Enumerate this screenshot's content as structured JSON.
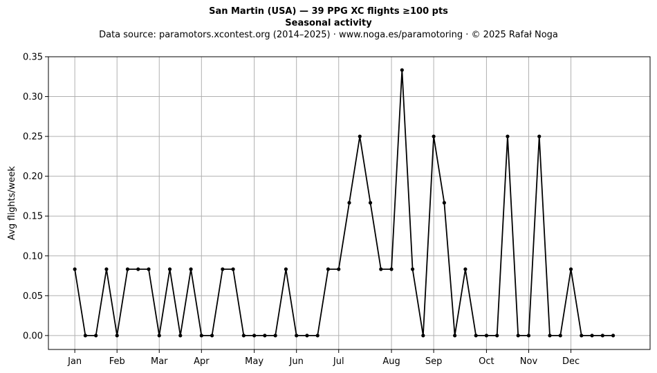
{
  "chart_data": {
    "type": "line",
    "title": "San Martin (USA)  —  39 PPG XC flights ≥100 pts",
    "subtitle": "Seasonal activity",
    "source_note": "Data source: paramotors.xcontest.org (2014–2025)  ·  www.noga.es/paramotoring  ·  © 2025 Rafał Noga",
    "xlabel": "",
    "ylabel": "Avg flights/week",
    "ylim": [
      -0.0175,
      0.35
    ],
    "xlim": [
      -2.5,
      54.5
    ],
    "grid": true,
    "x_ticks": [
      {
        "label": "Jan",
        "x": 0
      },
      {
        "label": "Feb",
        "x": 4
      },
      {
        "label": "Mar",
        "x": 8
      },
      {
        "label": "Apr",
        "x": 12
      },
      {
        "label": "May",
        "x": 17
      },
      {
        "label": "Jun",
        "x": 21
      },
      {
        "label": "Jul",
        "x": 25
      },
      {
        "label": "Aug",
        "x": 30
      },
      {
        "label": "Sep",
        "x": 34
      },
      {
        "label": "Oct",
        "x": 39
      },
      {
        "label": "Nov",
        "x": 43
      },
      {
        "label": "Dec",
        "x": 47
      }
    ],
    "y_ticks": [
      "0.00",
      "0.05",
      "0.10",
      "0.15",
      "0.20",
      "0.25",
      "0.30",
      "0.35"
    ],
    "series": [
      {
        "color": "#000000",
        "x": [
          0,
          1,
          2,
          3,
          4,
          5,
          6,
          7,
          8,
          9,
          10,
          11,
          12,
          13,
          14,
          15,
          16,
          17,
          18,
          19,
          20,
          21,
          22,
          23,
          24,
          25,
          26,
          27,
          28,
          29,
          30,
          31,
          32,
          33,
          34,
          35,
          36,
          37,
          38,
          39,
          40,
          41,
          42,
          43,
          44,
          45,
          46,
          47,
          48,
          49,
          50,
          51
        ],
        "values": [
          0.0833,
          0,
          0,
          0.0833,
          0,
          0.0833,
          0.0833,
          0.0833,
          0,
          0.0833,
          0,
          0.0833,
          0,
          0,
          0.0833,
          0.0833,
          0,
          0,
          0,
          0,
          0.0833,
          0,
          0,
          0,
          0.0833,
          0.0833,
          0.1667,
          0.25,
          0.1667,
          0.0833,
          0.0833,
          0.3333,
          0.0833,
          0,
          0.25,
          0.1667,
          0,
          0.0833,
          0,
          0,
          0,
          0.25,
          0,
          0,
          0.25,
          0,
          0,
          0.0833,
          0,
          0,
          0,
          0
        ]
      }
    ]
  }
}
